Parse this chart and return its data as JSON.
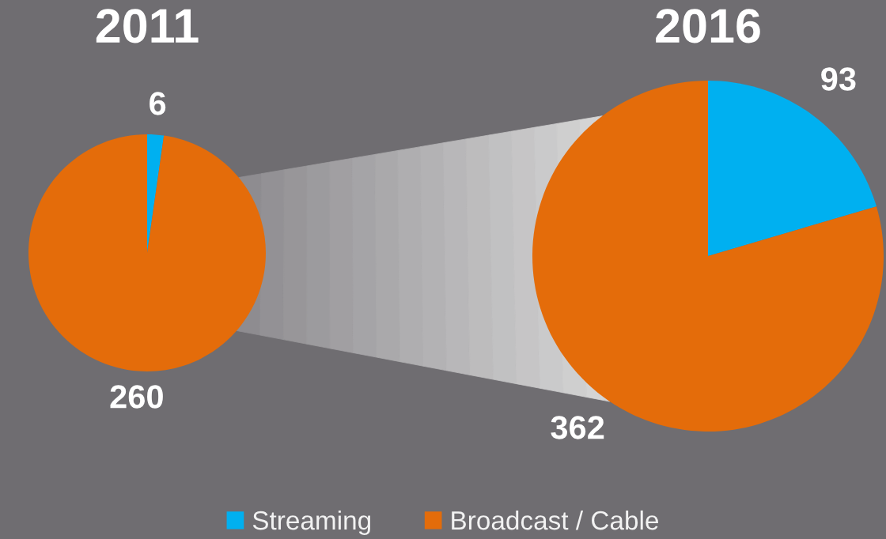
{
  "chart_data": [
    {
      "type": "pie",
      "title": "2011",
      "categories": [
        "Streaming",
        "Broadcast / Cable"
      ],
      "values": [
        6,
        260
      ],
      "colors": [
        "#00b0f0",
        "#e46c0a"
      ],
      "data_labels": true,
      "legend": "bottom"
    },
    {
      "type": "pie",
      "title": "2016",
      "categories": [
        null,
        null
      ],
      "values": [
        93,
        362
      ],
      "colors": [
        "#00b0f0",
        "#e46c0a"
      ],
      "data_labels": true
    }
  ]
}
